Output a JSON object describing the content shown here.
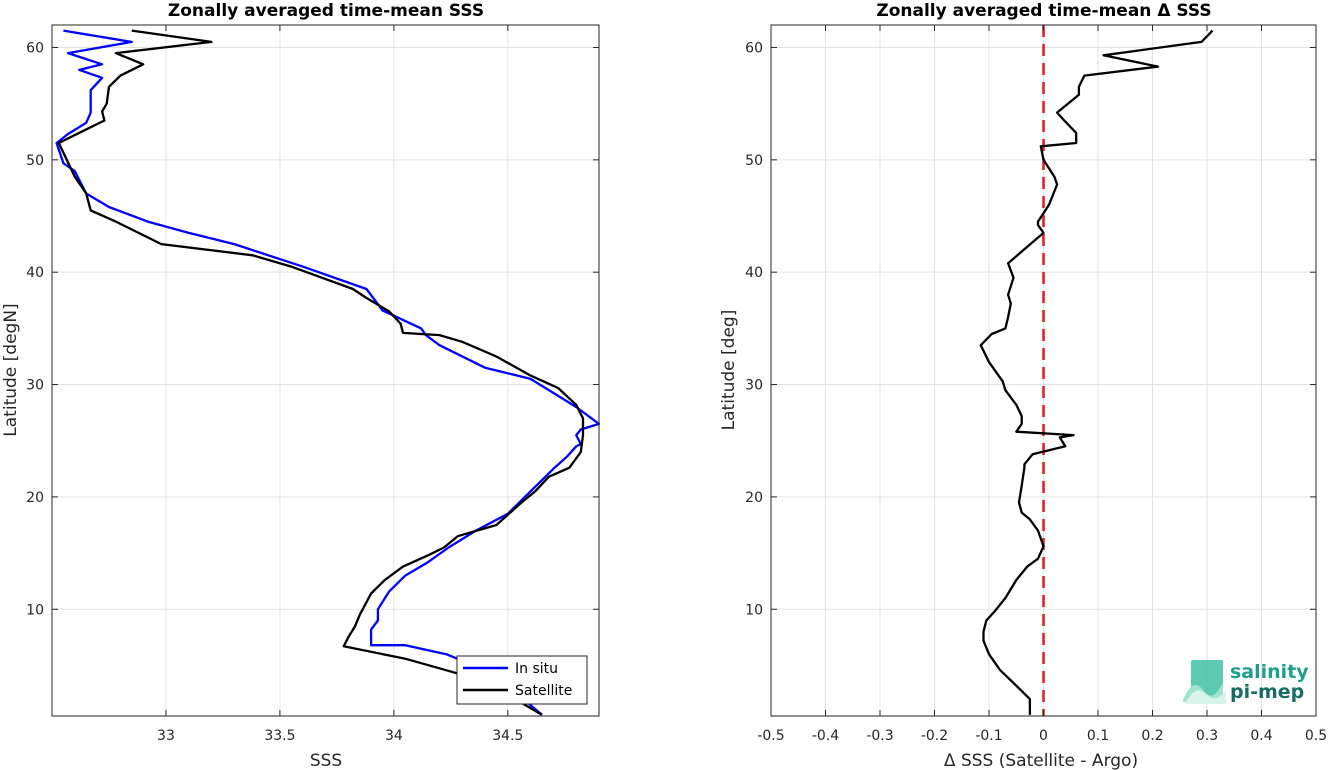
{
  "chart_data": [
    {
      "type": "line",
      "title": "Zonally averaged time-mean SSS",
      "xlabel": "SSS",
      "ylabel": "Latitude [degN]",
      "xlim": [
        32.5,
        34.9
      ],
      "ylim": [
        0.5,
        62
      ],
      "xticks": [
        33,
        33.5,
        34,
        34.5
      ],
      "yticks": [
        10,
        20,
        30,
        40,
        50,
        60
      ],
      "grid": true,
      "legend": "bottom-right",
      "series": [
        {
          "name": "In situ",
          "color": "#0000ff",
          "x": [
            34.65,
            34.5,
            34.4,
            34.23,
            34.05,
            33.9,
            33.9,
            33.93,
            33.93,
            33.98,
            34.05,
            34.15,
            34.24,
            34.36,
            34.5,
            34.6,
            34.7,
            34.76,
            34.8,
            34.82,
            34.8,
            34.82,
            34.9,
            34.8,
            34.6,
            34.4,
            34.2,
            34.14,
            34.12,
            33.95,
            33.88,
            33.6,
            33.3,
            33.1,
            32.92,
            32.75,
            32.65,
            32.6,
            32.55,
            32.52,
            32.57,
            32.65,
            32.67,
            32.67,
            32.72,
            32.62,
            32.72,
            32.57,
            32.85,
            32.55
          ],
          "y": [
            0.6,
            3.2,
            4.6,
            6.0,
            6.8,
            6.8,
            8.2,
            9.0,
            10.0,
            11.6,
            13.0,
            14.2,
            15.5,
            17.0,
            18.5,
            20.5,
            22.5,
            23.6,
            24.5,
            24.7,
            25.5,
            26.0,
            26.5,
            28.0,
            30.5,
            31.5,
            33.5,
            34.4,
            35.0,
            36.6,
            38.5,
            40.5,
            42.5,
            43.5,
            44.5,
            45.8,
            47.0,
            49.0,
            49.7,
            51.5,
            52.3,
            53.3,
            54.2,
            56.2,
            57.3,
            58.0,
            58.5,
            59.5,
            60.5,
            61.5
          ]
        },
        {
          "name": "Satellite",
          "color": "#000000",
          "x": [
            34.65,
            34.4,
            34.05,
            33.78,
            33.8,
            33.83,
            33.85,
            33.9,
            33.96,
            34.04,
            34.15,
            34.22,
            34.28,
            34.45,
            34.56,
            34.62,
            34.68,
            34.77,
            34.82,
            34.83,
            34.83,
            34.8,
            34.72,
            34.6,
            34.45,
            34.3,
            34.2,
            34.04,
            34.03,
            33.98,
            33.88,
            33.82,
            33.55,
            33.38,
            32.98,
            32.78,
            32.67,
            32.65,
            32.6,
            32.53,
            32.63,
            32.73,
            32.72,
            32.74,
            32.75,
            32.8,
            32.9,
            32.78,
            33.2,
            32.85
          ],
          "y": [
            0.6,
            3.6,
            5.6,
            6.7,
            7.5,
            8.5,
            9.5,
            11.4,
            12.6,
            13.8,
            14.8,
            15.5,
            16.5,
            17.5,
            19.5,
            20.5,
            21.8,
            22.6,
            24.0,
            25.5,
            27.0,
            28.2,
            29.7,
            30.8,
            32.5,
            33.8,
            34.4,
            34.6,
            35.4,
            36.5,
            37.7,
            38.5,
            40.5,
            41.5,
            42.5,
            44.5,
            45.5,
            47.0,
            48.5,
            51.5,
            52.5,
            53.5,
            54.3,
            55.0,
            56.5,
            57.5,
            58.5,
            59.5,
            60.5,
            61.5
          ]
        }
      ]
    },
    {
      "type": "line",
      "title": "Zonally averaged time-mean Δ SSS",
      "xlabel": "Δ SSS (Satellite - Argo)",
      "ylabel": "Latitude [deg]",
      "xlim": [
        -0.5,
        0.5
      ],
      "ylim": [
        0.5,
        62
      ],
      "xticks": [
        -0.5,
        -0.4,
        -0.3,
        -0.2,
        -0.1,
        0,
        0.1,
        0.2,
        0.3,
        0.4,
        0.5
      ],
      "xtick_labels": [
        "-0.5",
        "-0.4",
        "-0.3",
        "-0.2",
        "-0.1",
        "0",
        "0.1",
        "0.2",
        "0.3",
        "0.4",
        "0.5"
      ],
      "yticks": [
        10,
        20,
        30,
        40,
        50,
        60
      ],
      "grid": true,
      "reference_line": {
        "x": 0,
        "color": "#e41a1c",
        "style": "dashed"
      },
      "series": [
        {
          "color": "#000000",
          "x": [
            -0.025,
            -0.025,
            -0.05,
            -0.08,
            -0.1,
            -0.11,
            -0.11,
            -0.105,
            -0.09,
            -0.07,
            -0.05,
            -0.03,
            -0.01,
            0.0,
            -0.01,
            -0.025,
            -0.04,
            -0.045,
            -0.04,
            -0.035,
            -0.035,
            -0.02,
            0.04,
            0.03,
            0.055,
            -0.05,
            -0.04,
            -0.04,
            -0.05,
            -0.07,
            -0.075,
            -0.1,
            -0.115,
            -0.095,
            -0.07,
            -0.065,
            -0.06,
            -0.065,
            -0.055,
            -0.065,
            0.0,
            -0.01,
            -0.01,
            0.01,
            0.025,
            0.02,
            0.0,
            -0.005,
            0.06,
            0.06,
            0.04,
            0.025,
            0.05,
            0.065,
            0.065,
            0.075,
            0.21,
            0.11,
            0.29,
            0.31
          ],
          "y": [
            0.6,
            2.0,
            3.2,
            4.6,
            6.0,
            7.2,
            8.0,
            9.0,
            9.8,
            11.0,
            12.6,
            13.8,
            14.5,
            15.6,
            17.0,
            18.0,
            18.6,
            19.5,
            21.0,
            22.6,
            22.9,
            23.8,
            24.5,
            25.3,
            25.5,
            25.8,
            26.5,
            27.2,
            28.2,
            29.5,
            30.3,
            32.0,
            33.5,
            34.5,
            35.0,
            36.0,
            37.2,
            38.0,
            39.5,
            40.8,
            43.5,
            44.2,
            44.5,
            46.0,
            47.8,
            48.5,
            50.0,
            51.2,
            51.5,
            52.4,
            53.4,
            54.2,
            55.2,
            55.8,
            56.5,
            57.5,
            58.3,
            59.3,
            60.5,
            61.5
          ]
        }
      ]
    }
  ],
  "logo": {
    "line1": "salinity",
    "line2": "pi-mep"
  }
}
